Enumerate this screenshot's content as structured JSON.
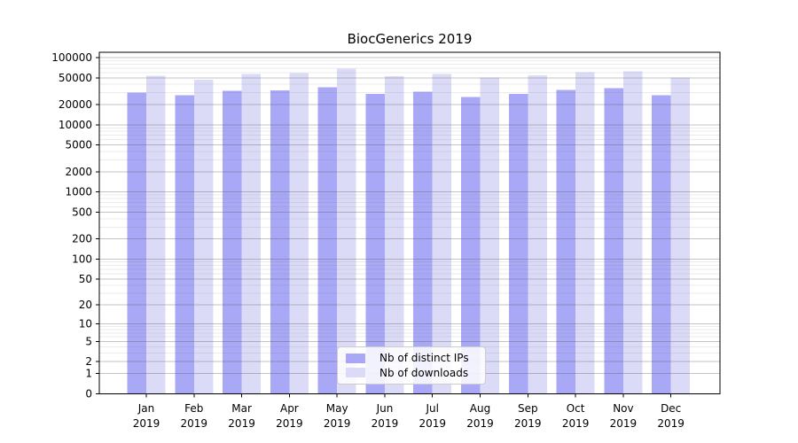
{
  "chart_data": {
    "type": "bar",
    "title": "BiocGenerics 2019",
    "categories": [
      {
        "month": "Jan",
        "year": "2019"
      },
      {
        "month": "Feb",
        "year": "2019"
      },
      {
        "month": "Mar",
        "year": "2019"
      },
      {
        "month": "Apr",
        "year": "2019"
      },
      {
        "month": "May",
        "year": "2019"
      },
      {
        "month": "Jun",
        "year": "2019"
      },
      {
        "month": "Jul",
        "year": "2019"
      },
      {
        "month": "Aug",
        "year": "2019"
      },
      {
        "month": "Sep",
        "year": "2019"
      },
      {
        "month": "Oct",
        "year": "2019"
      },
      {
        "month": "Nov",
        "year": "2019"
      },
      {
        "month": "Dec",
        "year": "2019"
      }
    ],
    "series": [
      {
        "name": "Nb of distinct IPs",
        "color": "#a8a8f6",
        "values": [
          30000,
          27700,
          32200,
          32500,
          36000,
          28800,
          31300,
          26100,
          28800,
          32800,
          35300,
          27700
        ]
      },
      {
        "name": "Nb of downloads",
        "color": "#dbdbf8",
        "values": [
          53500,
          46800,
          57400,
          59000,
          68500,
          52900,
          57400,
          50800,
          54500,
          60300,
          62100,
          50800
        ]
      }
    ],
    "y_scale": "log10(1+y)",
    "ylim": [
      0,
      100000
    ],
    "y_ticks": [
      0,
      1,
      2,
      5,
      10,
      20,
      50,
      100,
      200,
      500,
      1000,
      2000,
      5000,
      10000,
      20000,
      50000,
      100000
    ],
    "y_tick_labels": [
      "0",
      "1",
      "2",
      "5",
      "10",
      "20",
      "50",
      "100",
      "200",
      "500",
      "1000",
      "2000",
      "5000",
      "10000",
      "20000",
      "50000",
      "100000"
    ],
    "xlabel": "",
    "ylabel": "",
    "grid": "horizontal, major and minor log lines, drawn over bars",
    "legend_position": "bottom-center inside plot"
  },
  "colors": {
    "axis": "#000000",
    "grid_major": "#c9c9c9",
    "grid_minor": "#ececec",
    "background": "#ffffff",
    "legend_border": "#cccccc"
  }
}
